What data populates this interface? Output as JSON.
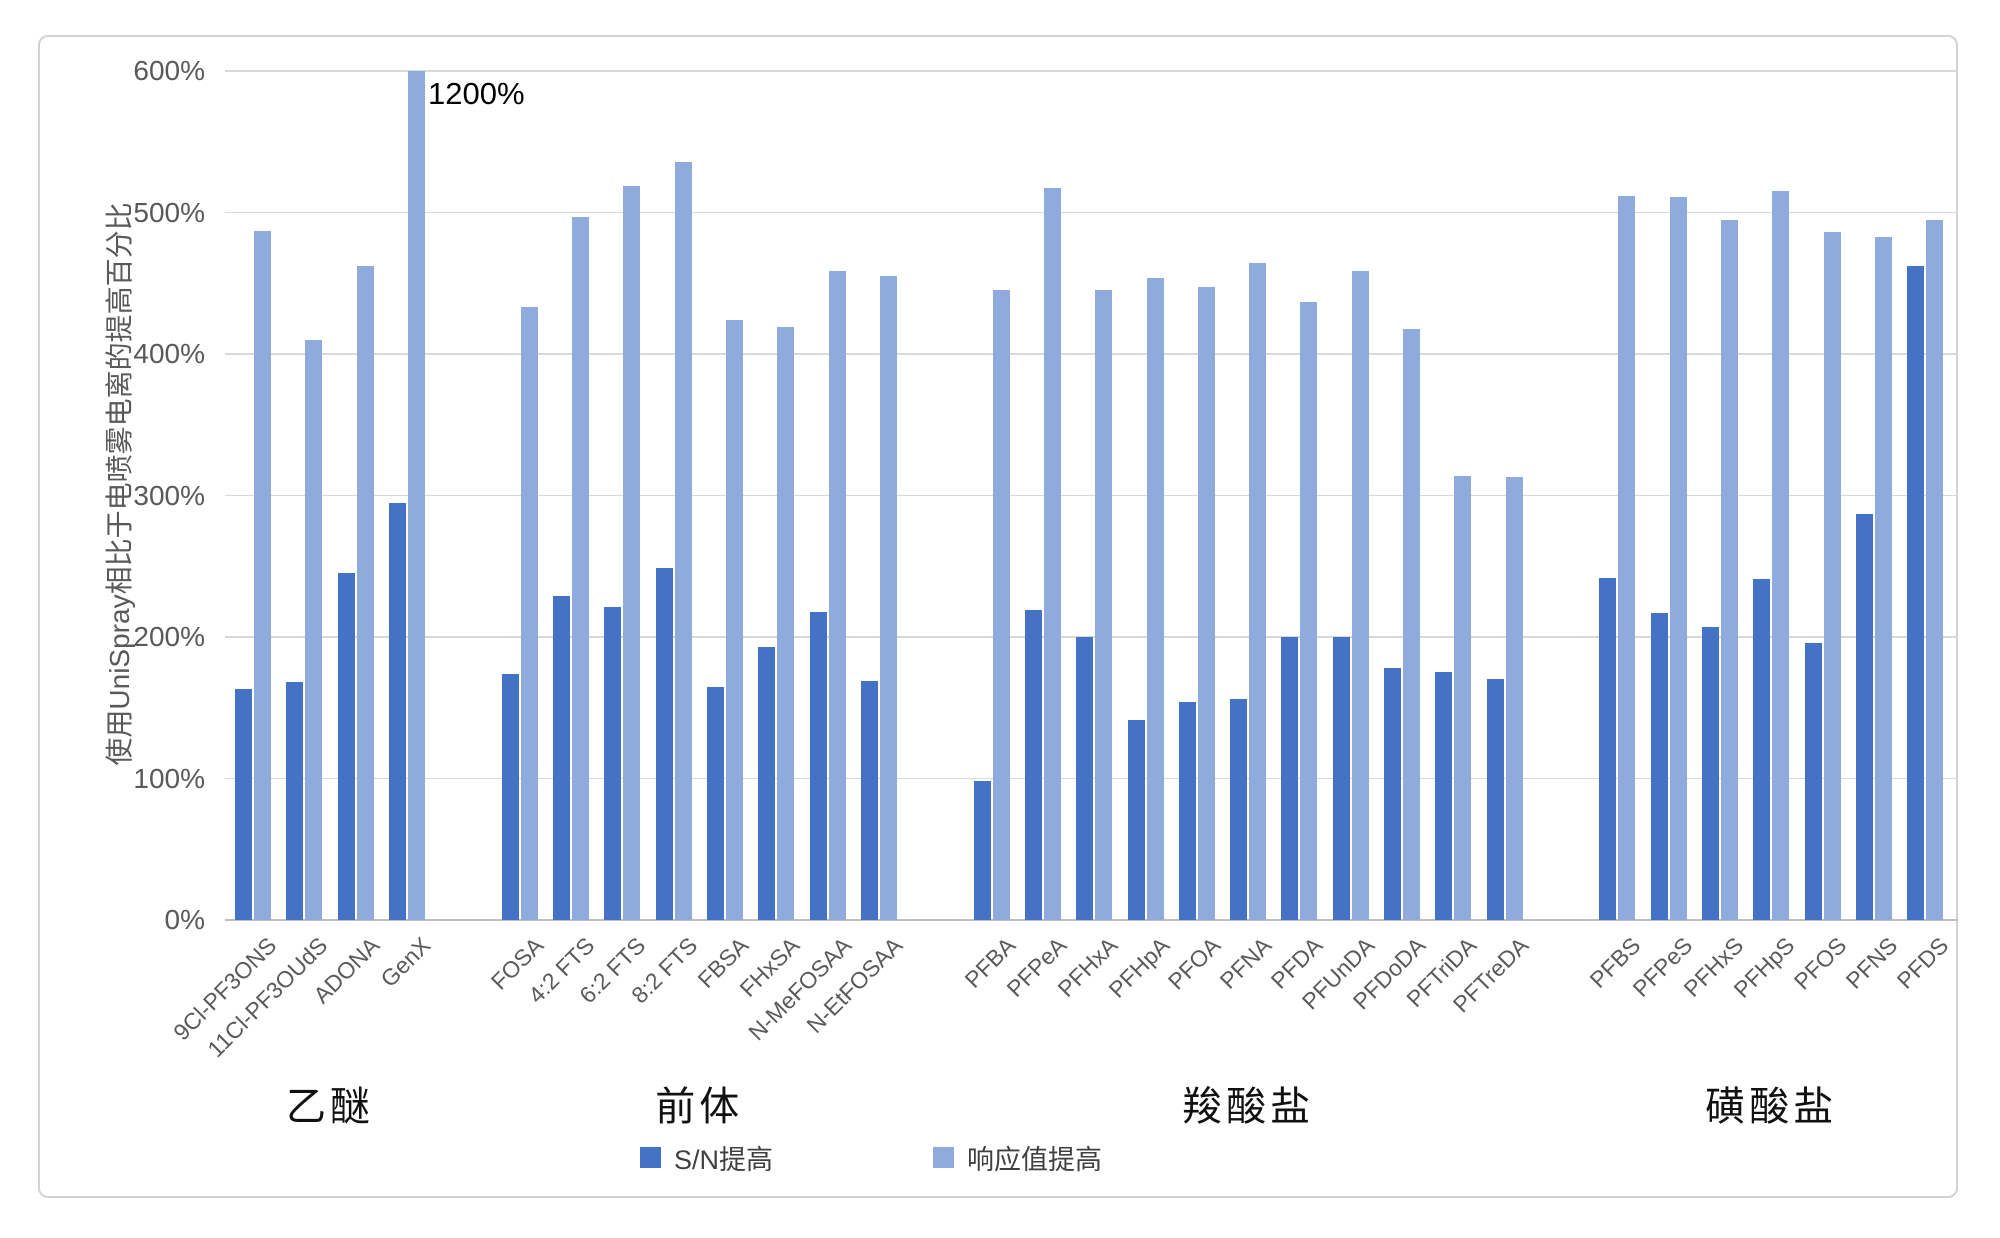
{
  "y_axis": {
    "title": "使用UniSpray相比于电喷雾电离的提高百分比",
    "ticks": [
      "0%",
      "100%",
      "200%",
      "300%",
      "400%",
      "500%",
      "600%"
    ]
  },
  "legend": {
    "items": [
      {
        "label": "S/N提高",
        "color": "#4472C4"
      },
      {
        "label": "响应值提高",
        "color": "#8FAADC"
      }
    ]
  },
  "annotation": {
    "genx_overflow_label": "1200%"
  },
  "chart_data": {
    "type": "bar",
    "title": "",
    "xlabel": "",
    "ylabel": "使用UniSpray相比于电喷雾电离的提高百分比",
    "ylim": [
      0,
      600
    ],
    "ytick_step": 100,
    "ytick_format": "percent",
    "grid": true,
    "legend_position": "bottom",
    "series_names": [
      "S/N提高",
      "响应值提高"
    ],
    "clip_note": "GenX 响应值提高 bar exceeds the axis: clipped at 600%, labeled 1200%",
    "colors": {
      "sn": "#4472C4",
      "resp": "#8FAADC"
    },
    "groups": [
      {
        "label": "乙醚",
        "items": [
          {
            "name": "9Cl-PF3ONS",
            "sn": 163,
            "resp": 487
          },
          {
            "name": "11Cl-PF3OUdS",
            "sn": 168,
            "resp": 410
          },
          {
            "name": "ADONA",
            "sn": 245,
            "resp": 462
          },
          {
            "name": "GenX",
            "sn": 295,
            "resp": 1200,
            "resp_clipped_at": 600,
            "data_label": "1200%"
          }
        ]
      },
      {
        "label": "前体",
        "items": [
          {
            "name": "FOSA",
            "sn": 174,
            "resp": 433
          },
          {
            "name": "4:2 FTS",
            "sn": 229,
            "resp": 497
          },
          {
            "name": "6:2 FTS",
            "sn": 221,
            "resp": 519
          },
          {
            "name": "8:2 FTS",
            "sn": 249,
            "resp": 536
          },
          {
            "name": "FBSA",
            "sn": 165,
            "resp": 424
          },
          {
            "name": "FHxSA",
            "sn": 193,
            "resp": 419
          },
          {
            "name": "N-MeFOSAA",
            "sn": 218,
            "resp": 459
          },
          {
            "name": "N-EtFOSAA",
            "sn": 169,
            "resp": 455
          }
        ]
      },
      {
        "label": "羧酸盐",
        "items": [
          {
            "name": "PFBA",
            "sn": 98,
            "resp": 445
          },
          {
            "name": "PFPeA",
            "sn": 219,
            "resp": 517
          },
          {
            "name": "PFHxA",
            "sn": 200,
            "resp": 445
          },
          {
            "name": "PFHpA",
            "sn": 141,
            "resp": 454
          },
          {
            "name": "PFOA",
            "sn": 154,
            "resp": 447
          },
          {
            "name": "PFNA",
            "sn": 156,
            "resp": 464
          },
          {
            "name": "PFDA",
            "sn": 200,
            "resp": 437
          },
          {
            "name": "PFUnDA",
            "sn": 200,
            "resp": 459
          },
          {
            "name": "PFDoDA",
            "sn": 178,
            "resp": 418
          },
          {
            "name": "PFTriDA",
            "sn": 175,
            "resp": 314
          },
          {
            "name": "PFTreDA",
            "sn": 170,
            "resp": 313
          }
        ]
      },
      {
        "label": "磺酸盐",
        "items": [
          {
            "name": "PFBS",
            "sn": 242,
            "resp": 512
          },
          {
            "name": "PFPeS",
            "sn": 217,
            "resp": 511
          },
          {
            "name": "PFHxS",
            "sn": 207,
            "resp": 495
          },
          {
            "name": "PFHpS",
            "sn": 241,
            "resp": 515
          },
          {
            "name": "PFOS",
            "sn": 196,
            "resp": 486
          },
          {
            "name": "PFNS",
            "sn": 287,
            "resp": 483
          },
          {
            "name": "PFDS",
            "sn": 462,
            "resp": 495
          }
        ]
      }
    ]
  }
}
